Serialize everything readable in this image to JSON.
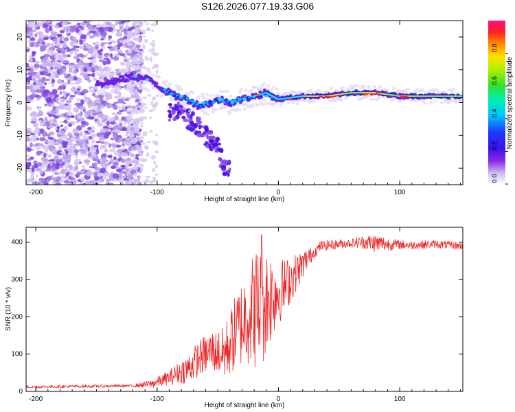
{
  "chart_data": [
    {
      "type": "heatmap",
      "title": "S126.2026.077.19.33.G06",
      "xlabel": "Height of straight line (km)",
      "ylabel": "Frequency (Hz)",
      "xlim": [
        -208,
        152
      ],
      "ylim": [
        -25,
        25
      ],
      "xticks": [
        -200,
        -100,
        0,
        100
      ],
      "yticks": [
        20,
        10,
        0,
        -10,
        -20
      ],
      "colorbar": {
        "label": "Normalized spectral amplitude",
        "range": [
          0,
          1
        ],
        "ticks": [
          "0.0",
          "0.2",
          "0.4",
          "0.6",
          "0.8"
        ],
        "tick_values": [
          0,
          0.2,
          0.4,
          0.6,
          0.8
        ]
      },
      "ridge": {
        "x": [
          -140,
          -120,
          -105,
          -95,
          -85,
          -75,
          -65,
          -55,
          -48,
          -40,
          -30,
          -20,
          -10,
          0,
          20,
          40,
          60,
          80,
          100,
          120,
          152
        ],
        "f": [
          6,
          8,
          7,
          4,
          2,
          1,
          -1,
          0,
          1,
          0,
          1,
          2,
          3,
          1,
          2,
          2,
          3,
          3,
          2,
          2,
          2
        ]
      },
      "scatter_branch": {
        "x": [
          -80,
          -70,
          -60,
          -50,
          -45
        ],
        "f": [
          -3,
          -6,
          -10,
          -14,
          -19
        ]
      }
    },
    {
      "type": "line",
      "title": "",
      "xlabel": "Height of straight line (km)",
      "ylabel": "SNR (10 * v/v)",
      "xlim": [
        -208,
        152
      ],
      "ylim": [
        0,
        440
      ],
      "xticks": [
        -200,
        -100,
        0,
        100
      ],
      "yticks": [
        0,
        100,
        200,
        300,
        400
      ],
      "color": "#ee2222",
      "trend": {
        "x": [
          -208,
          -120,
          -105,
          -95,
          -85,
          -75,
          -65,
          -55,
          -45,
          -35,
          -25,
          -15,
          -5,
          5,
          15,
          25,
          35,
          50,
          70,
          90,
          110,
          130,
          152
        ],
        "y": [
          12,
          15,
          20,
          30,
          45,
          60,
          90,
          110,
          100,
          160,
          210,
          230,
          260,
          280,
          320,
          360,
          390,
          395,
          400,
          395,
          392,
          395,
          390
        ]
      },
      "noise": {
        "x": [
          -208,
          -120,
          -110,
          -90,
          -70,
          -50,
          -40,
          -30,
          -15,
          0,
          15,
          30,
          60,
          80,
          100,
          152
        ],
        "amplitude": [
          4,
          4,
          8,
          20,
          45,
          60,
          90,
          120,
          180,
          90,
          50,
          15,
          12,
          25,
          12,
          10
        ]
      },
      "peak": {
        "x": -14,
        "y": 420
      }
    }
  ]
}
